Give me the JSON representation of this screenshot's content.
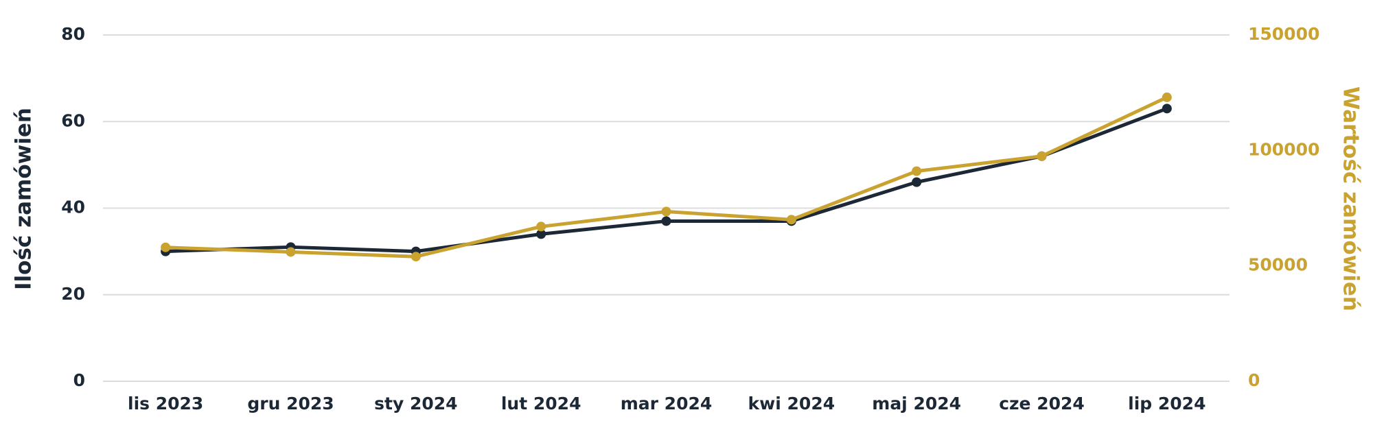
{
  "chart_data": {
    "type": "line",
    "y_label": "Ilość zamówień",
    "y2_label": "Wartość zamówień",
    "categories": [
      "lis 2023",
      "gru 2023",
      "sty 2024",
      "lut 2024",
      "mar 2024",
      "kwi 2024",
      "maj 2024",
      "cze 2024",
      "lip 2024"
    ],
    "series": [
      {
        "color": "#1c2836",
        "values": [
          30,
          31,
          30,
          34,
          37,
          37,
          46,
          52,
          63
        ]
      },
      {
        "color": "#c9a22f",
        "axis": "y2",
        "values": [
          58000,
          56000,
          54000,
          67000,
          73500,
          70000,
          91000,
          97500,
          123000
        ]
      }
    ],
    "ylim": [
      0,
      80
    ],
    "yticks": [
      0,
      20,
      40,
      60,
      80
    ],
    "y2lim": [
      0,
      150000
    ],
    "y2ticks": [
      0,
      50000,
      100000,
      150000
    ],
    "grid": true
  }
}
